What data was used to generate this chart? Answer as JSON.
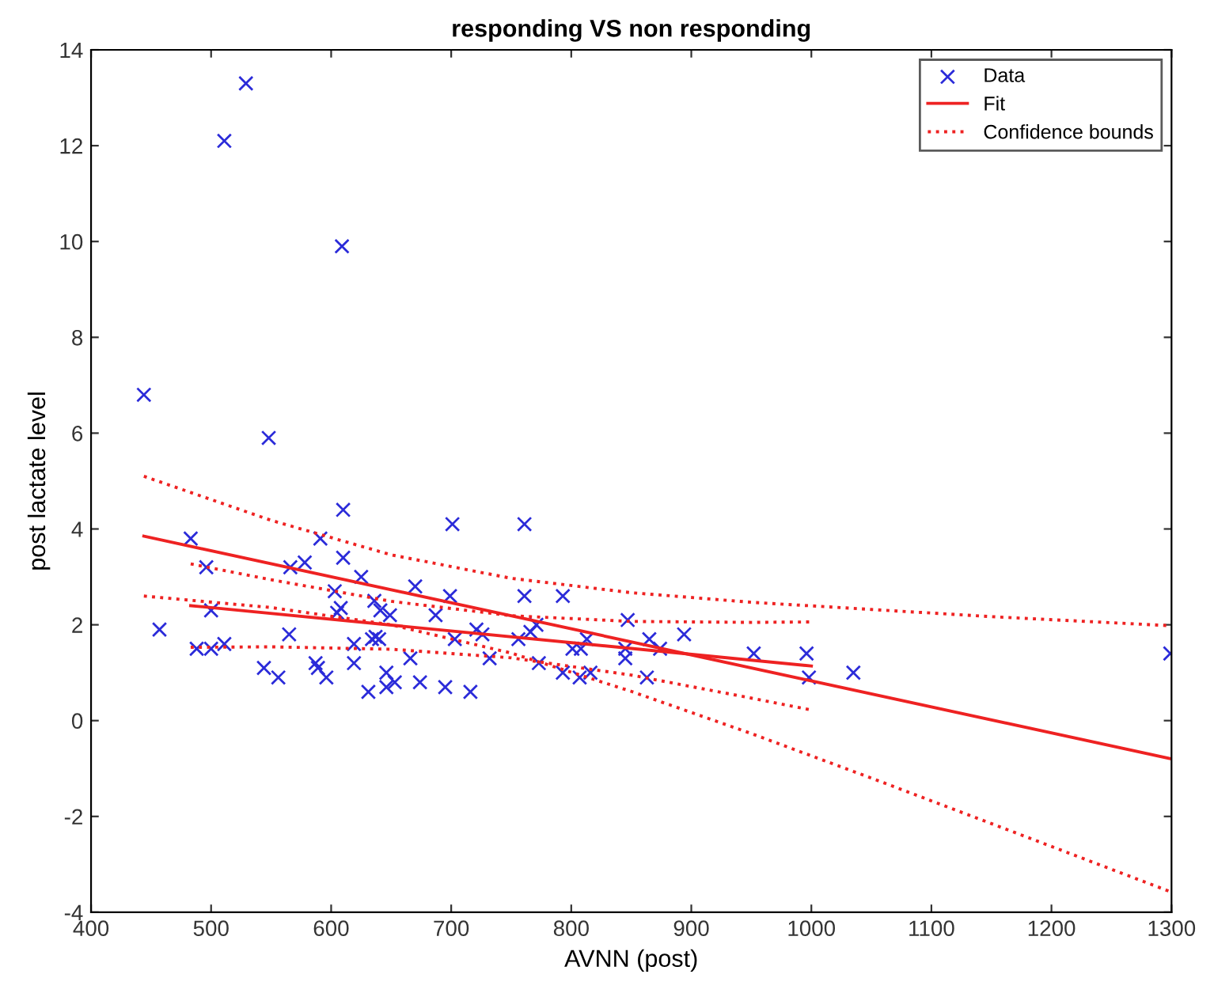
{
  "chart_data": {
    "type": "scatter",
    "title": "responding VS non responding",
    "xlabel": "AVNN (post)",
    "ylabel": "post lactate level",
    "xlim": [
      400,
      1300
    ],
    "ylim": [
      -4,
      14
    ],
    "xticks": [
      400,
      500,
      600,
      700,
      800,
      900,
      1000,
      1100,
      1200,
      1300
    ],
    "yticks": [
      -4,
      -2,
      0,
      2,
      4,
      6,
      8,
      10,
      12,
      14
    ],
    "grid": false,
    "legend": "top right",
    "series": [
      {
        "name": "Data",
        "marker": "cross",
        "color": "#2b2bd9",
        "x": [
          444,
          457,
          483,
          496,
          500,
          488,
          500,
          511,
          548,
          544,
          556,
          565,
          566,
          578,
          591,
          587,
          589,
          596,
          603,
          605,
          608,
          610,
          610,
          619,
          619,
          625,
          631,
          634,
          637,
          640,
          636,
          641,
          649,
          646,
          646,
          653,
          666,
          670,
          674,
          687,
          695,
          699,
          701,
          703,
          716,
          721,
          726,
          732,
          756,
          761,
          761,
          766,
          771,
          773,
          793,
          793,
          801,
          808,
          807,
          816,
          813,
          847,
          845,
          845,
          865,
          863,
          874,
          894,
          952,
          996,
          998,
          1035,
          1299,
          529,
          511,
          609
        ],
        "values": [
          6.8,
          1.9,
          3.8,
          3.2,
          2.3,
          1.5,
          1.5,
          1.6,
          5.9,
          1.1,
          0.9,
          1.8,
          3.2,
          3.3,
          3.8,
          1.2,
          1.1,
          0.9,
          2.7,
          2.25,
          2.35,
          4.4,
          3.4,
          1.6,
          1.2,
          3.0,
          0.6,
          1.7,
          1.75,
          1.7,
          2.5,
          2.3,
          2.2,
          1.0,
          0.7,
          0.8,
          1.3,
          2.8,
          0.8,
          2.2,
          0.7,
          2.6,
          4.1,
          1.7,
          0.6,
          1.9,
          1.8,
          1.3,
          1.7,
          4.1,
          2.6,
          1.85,
          2.0,
          1.2,
          2.6,
          1.0,
          1.5,
          1.5,
          0.9,
          1.0,
          1.7,
          2.1,
          1.3,
          1.5,
          1.7,
          0.9,
          1.5,
          1.8,
          1.4,
          1.4,
          0.9,
          1.0,
          1.4,
          13.3,
          12.1,
          9.9
        ]
      },
      {
        "name": "Fit",
        "type": "line",
        "line_style": "solid",
        "marker": "none",
        "color": "#ee2222",
        "x": [
          444,
          1300
        ],
        "values": [
          3.85,
          -0.8
        ]
      },
      {
        "name": "Confidence bounds",
        "type": "line",
        "line_style": "dotted",
        "marker": "none",
        "color": "#ee2222",
        "x": [
          444,
          550,
          650,
          750,
          850,
          950,
          1050,
          1150,
          1300
        ],
        "values": [
          5.1,
          4.18,
          3.46,
          2.97,
          2.67,
          2.47,
          2.32,
          2.17,
          1.98
        ]
      },
      {
        "type": "line",
        "line_style": "dotted",
        "marker": "none",
        "color": "#ee2222",
        "x": [
          444,
          550,
          650,
          750,
          850,
          950,
          1050,
          1150,
          1300
        ],
        "values": [
          2.6,
          2.36,
          2.0,
          1.41,
          0.61,
          -0.27,
          -1.2,
          -2.15,
          -3.58
        ]
      },
      {
        "type": "line",
        "line_style": "solid",
        "marker": "none",
        "color": "#ee2222",
        "x": [
          483,
          1000
        ],
        "values": [
          2.4,
          1.14
        ]
      },
      {
        "type": "line",
        "line_style": "dotted",
        "marker": "none",
        "color": "#ee2222",
        "x": [
          483,
          550,
          650,
          750,
          850,
          950,
          1000
        ],
        "values": [
          3.27,
          2.94,
          2.49,
          2.19,
          2.07,
          2.05,
          2.06
        ]
      },
      {
        "type": "line",
        "line_style": "dotted",
        "marker": "none",
        "color": "#ee2222",
        "x": [
          483,
          550,
          650,
          750,
          850,
          950,
          1000
        ],
        "values": [
          1.53,
          1.54,
          1.49,
          1.31,
          0.95,
          0.47,
          0.22
        ]
      }
    ]
  }
}
